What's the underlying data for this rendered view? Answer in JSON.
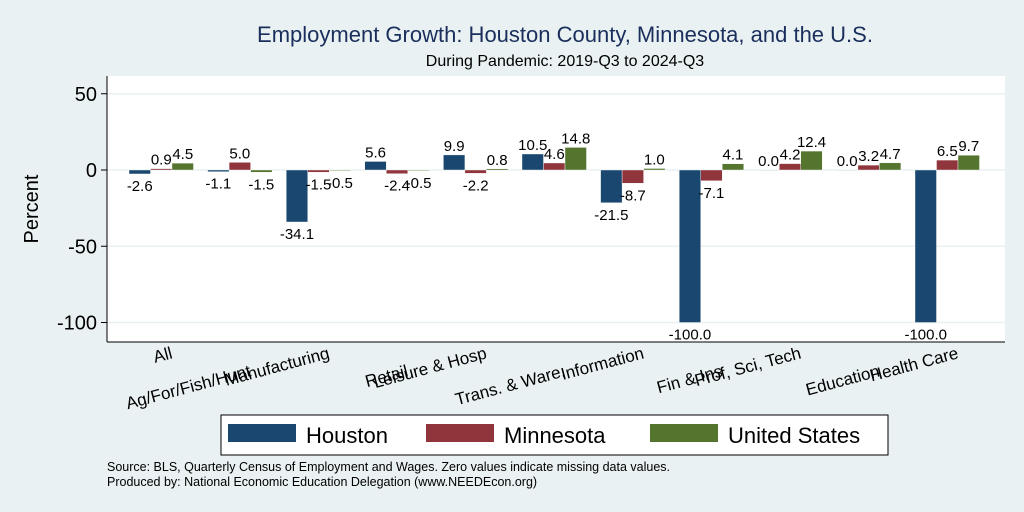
{
  "chart_data": {
    "type": "bar",
    "title": "Employment Growth: Houston County, Minnesota, and the U.S.",
    "subtitle": "During Pandemic: 2019-Q3 to 2024-Q3",
    "xlabel": "",
    "ylabel": "Percent",
    "ylim": [
      -113,
      61
    ],
    "yticks": [
      50,
      0,
      -50,
      -100
    ],
    "grid": true,
    "legend_position": "bottom",
    "categories": [
      "All",
      "Ag/For/Fish/Hunt",
      "Manufacturing",
      "Retail",
      "Leisure & Hosp",
      "Trans. & Ware.",
      "Information",
      "Fin & Ins",
      "Prof, Sci, Tech",
      "Education",
      "Health Care"
    ],
    "series": [
      {
        "name": "Houston",
        "color": "#1a476f",
        "values": [
          -2.6,
          -1.1,
          -34.1,
          5.6,
          9.9,
          10.5,
          -21.5,
          -100.0,
          0.0,
          0.0,
          -100.0
        ]
      },
      {
        "name": "Minnesota",
        "color": "#90353b",
        "values": [
          0.9,
          5.0,
          -1.5,
          -2.4,
          -2.2,
          4.6,
          -8.7,
          -7.1,
          4.2,
          3.2,
          6.5
        ]
      },
      {
        "name": "United States",
        "color": "#55752f",
        "values": [
          4.5,
          -1.5,
          -0.5,
          -0.5,
          0.8,
          14.8,
          1.0,
          4.1,
          12.4,
          4.7,
          9.7
        ]
      }
    ],
    "notes": [
      "Source: BLS, Quarterly Census of Employment and Wages. Zero values indicate missing data values.",
      "Produced by: National Economic Education Delegation (www.NEEDEcon.org)"
    ]
  }
}
